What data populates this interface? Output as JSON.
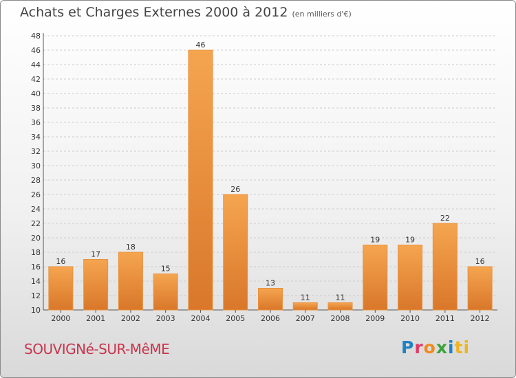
{
  "header": {
    "title": "Achats et Charges Externes 2000 à 2012",
    "subtitle": "(en milliers d'€)"
  },
  "footer": {
    "commune": "SOUVIGNé-SUR-MêME",
    "logo_letters": [
      "P",
      "r",
      "o",
      "x",
      "i",
      "ti"
    ]
  },
  "colors": {
    "bar_light": "#f5a54f",
    "bar_dark": "#d9772a",
    "grid": "#cccccc",
    "commune": "#c8344d"
  },
  "chart_data": {
    "type": "bar",
    "title": "Achats et Charges Externes 2000 à 2012",
    "subtitle": "(en milliers d'€)",
    "categories": [
      "2000",
      "2001",
      "2002",
      "2003",
      "2004",
      "2005",
      "2006",
      "2007",
      "2008",
      "2009",
      "2010",
      "2011",
      "2012"
    ],
    "values": [
      16,
      17,
      18,
      15,
      46,
      26,
      13,
      11,
      11,
      19,
      19,
      22,
      16
    ],
    "ylim": [
      10,
      48
    ],
    "yticks": [
      10,
      12,
      14,
      16,
      18,
      20,
      22,
      24,
      26,
      28,
      30,
      32,
      34,
      36,
      38,
      40,
      42,
      44,
      46,
      48
    ],
    "grid": true,
    "xlabel": "",
    "ylabel": ""
  }
}
